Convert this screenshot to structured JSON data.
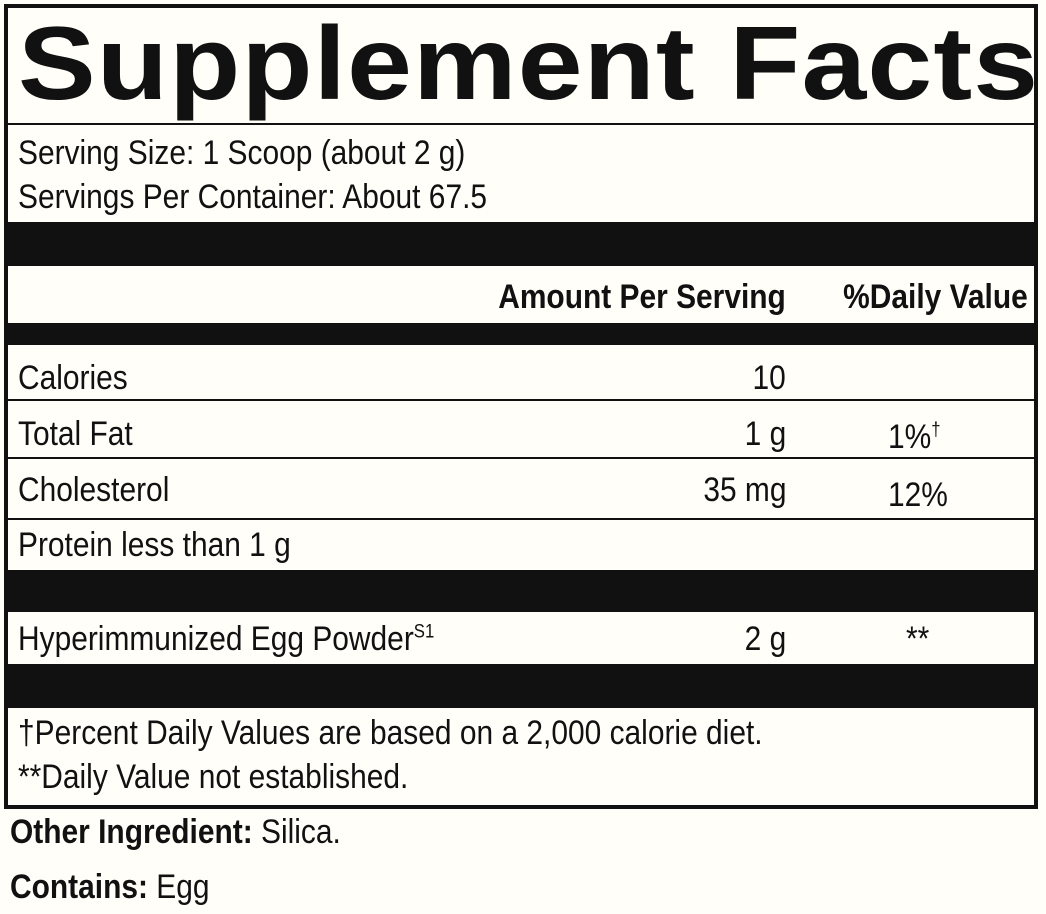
{
  "title": "Supplement Facts",
  "serving_size": "Serving Size: 1 Scoop (about 2 g)",
  "servings_per_container": "Servings Per Container: About 67.5",
  "headers": {
    "amount": "Amount Per Serving",
    "daily_value": "%Daily Value"
  },
  "rows": [
    {
      "label": "Calories",
      "amount": "10",
      "dv": ""
    },
    {
      "label": "Total Fat",
      "amount": "1 g",
      "dv": "1%",
      "dv_mark": "†"
    },
    {
      "label": "Cholesterol",
      "amount": "35 mg",
      "dv": "12%"
    },
    {
      "label": "Protein less than 1 g",
      "amount": "",
      "dv": ""
    }
  ],
  "ingredient": {
    "label": "Hyperimmunized Egg Powder",
    "superscript": "S1",
    "amount": "2 g",
    "dv": "**"
  },
  "footnotes": [
    "†Percent Daily Values are based on a 2,000 calorie diet.",
    "**Daily Value not established."
  ],
  "other_ingredient": {
    "label": "Other Ingredient:",
    "value": " Silica."
  },
  "contains": {
    "label": "Contains:",
    "value": " Egg"
  }
}
